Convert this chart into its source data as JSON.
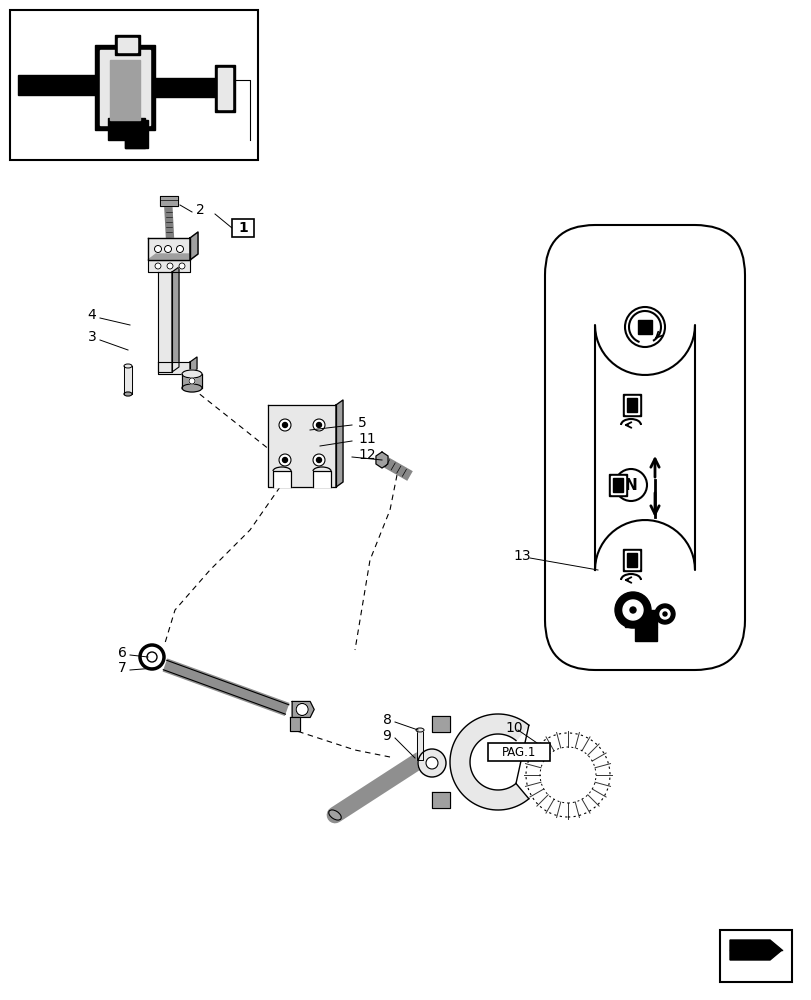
{
  "bg_color": "#ffffff",
  "line_color": "#000000",
  "gray_fill": "#d0d0d0",
  "gray_dark": "#a0a0a0",
  "gray_light": "#e8e8e8"
}
